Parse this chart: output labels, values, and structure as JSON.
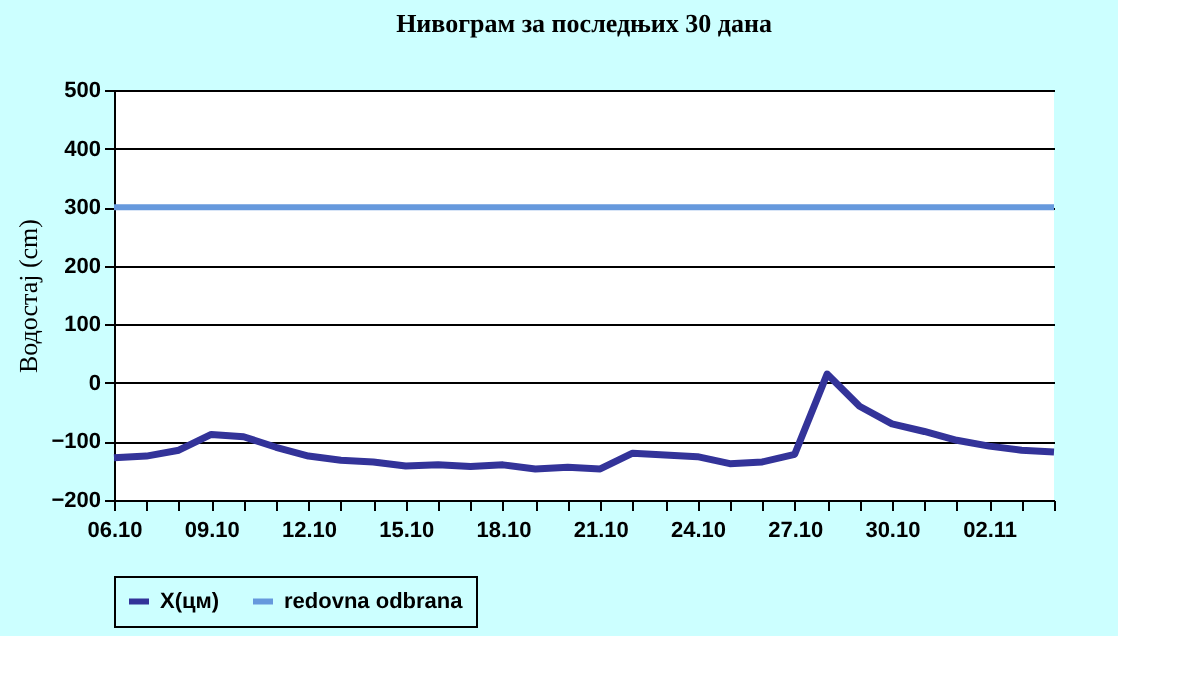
{
  "chart_data": {
    "type": "line",
    "title": "Нивограм за последњих 30 дана",
    "ylabel": "Водостај (cm)",
    "categories": [
      "06.10",
      null,
      null,
      "09.10",
      null,
      null,
      "12.10",
      null,
      null,
      "15.10",
      null,
      null,
      "18.10",
      null,
      null,
      "21.10",
      null,
      null,
      "24.10",
      null,
      null,
      "27.10",
      null,
      null,
      "30.10",
      null,
      null,
      "02.11",
      null,
      null
    ],
    "series": [
      {
        "name": "X(цм)",
        "color": "#333399",
        "values": [
          -128,
          -125,
          -115,
          -88,
          -92,
          -110,
          -125,
          -132,
          -135,
          -142,
          -140,
          -143,
          -140,
          -147,
          -144,
          -147,
          -120,
          -123,
          -126,
          -138,
          -135,
          -122,
          15,
          -40,
          -70,
          -83,
          -98,
          -108,
          -115,
          -118
        ]
      }
    ],
    "ref_lines": [
      {
        "axis": "y",
        "value": 300,
        "label": "redovna odbrana",
        "color": "#6699dd"
      }
    ],
    "ylim": [
      -200,
      500
    ],
    "yticks": [
      -200,
      -100,
      0,
      100,
      200,
      300,
      400,
      500
    ],
    "grid": "y",
    "legend": "bottom",
    "marker": "none",
    "line_style": "solid"
  }
}
